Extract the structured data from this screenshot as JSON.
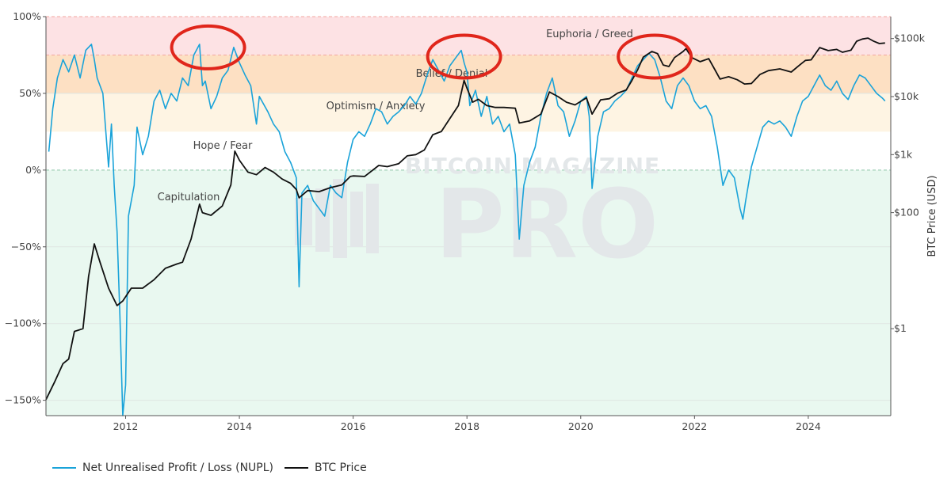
{
  "chart_data": {
    "type": "line",
    "xlim": [
      2010.6,
      2025.45
    ],
    "x_ticks": [
      "2012",
      "2014",
      "2016",
      "2018",
      "2020",
      "2022",
      "2024"
    ],
    "y_left": {
      "range": [
        -160,
        100
      ],
      "ticks": [
        {
          "v": 100,
          "label": "100%"
        },
        {
          "v": 50,
          "label": "50%"
        },
        {
          "v": 0,
          "label": "0%"
        },
        {
          "v": -50,
          "label": "−50%"
        },
        {
          "v": -100,
          "label": "−100%"
        },
        {
          "v": -150,
          "label": "−150%"
        }
      ]
    },
    "y_right": {
      "title": "BTC Price (USD)",
      "scale": "log",
      "ticks": [
        {
          "v": 100000,
          "label": "$100k"
        },
        {
          "v": 10000,
          "label": "$10k"
        },
        {
          "v": 1000,
          "label": "$1k"
        },
        {
          "v": 100,
          "label": "$100"
        },
        {
          "v": 1,
          "label": "$1"
        }
      ]
    },
    "zones": [
      {
        "name": "Euphoria / Greed",
        "from": 75,
        "to": 100,
        "color": "#fde2e4"
      },
      {
        "name": "Belief / Denial",
        "from": 50,
        "to": 75,
        "color": "#fde0c3"
      },
      {
        "name": "Optimism / Anxiety",
        "from": 25,
        "to": 50,
        "color": "#fef4e3"
      },
      {
        "name": "Hope / Fear",
        "from": 0,
        "to": 25,
        "color": "#ffffff"
      },
      {
        "name": "Capitulation",
        "from": -160,
        "to": 0,
        "color": "#e9f8f0"
      }
    ],
    "series": [
      {
        "name": "Net Unrealised Profit / Loss (NUPL)",
        "axis": "left",
        "color": "#1aa3d9",
        "points": [
          [
            2010.65,
            12
          ],
          [
            2010.72,
            40
          ],
          [
            2010.8,
            60
          ],
          [
            2010.9,
            72
          ],
          [
            2011.0,
            64
          ],
          [
            2011.1,
            75
          ],
          [
            2011.2,
            60
          ],
          [
            2011.3,
            78
          ],
          [
            2011.4,
            82
          ],
          [
            2011.45,
            72
          ],
          [
            2011.5,
            60
          ],
          [
            2011.6,
            50
          ],
          [
            2011.7,
            2
          ],
          [
            2011.75,
            30
          ],
          [
            2011.8,
            -10
          ],
          [
            2011.85,
            -40
          ],
          [
            2011.9,
            -95
          ],
          [
            2011.95,
            -160
          ],
          [
            2012.0,
            -140
          ],
          [
            2012.05,
            -30
          ],
          [
            2012.15,
            -10
          ],
          [
            2012.2,
            28
          ],
          [
            2012.3,
            10
          ],
          [
            2012.4,
            22
          ],
          [
            2012.5,
            45
          ],
          [
            2012.6,
            52
          ],
          [
            2012.7,
            40
          ],
          [
            2012.8,
            50
          ],
          [
            2012.9,
            45
          ],
          [
            2013.0,
            60
          ],
          [
            2013.1,
            55
          ],
          [
            2013.2,
            75
          ],
          [
            2013.3,
            82
          ],
          [
            2013.35,
            55
          ],
          [
            2013.4,
            58
          ],
          [
            2013.5,
            40
          ],
          [
            2013.6,
            48
          ],
          [
            2013.7,
            60
          ],
          [
            2013.8,
            65
          ],
          [
            2013.9,
            80
          ],
          [
            2014.0,
            70
          ],
          [
            2014.1,
            62
          ],
          [
            2014.2,
            55
          ],
          [
            2014.3,
            30
          ],
          [
            2014.35,
            48
          ],
          [
            2014.5,
            38
          ],
          [
            2014.6,
            30
          ],
          [
            2014.7,
            25
          ],
          [
            2014.8,
            12
          ],
          [
            2014.9,
            5
          ],
          [
            2015.0,
            -5
          ],
          [
            2015.05,
            -76
          ],
          [
            2015.1,
            -15
          ],
          [
            2015.2,
            -10
          ],
          [
            2015.3,
            -20
          ],
          [
            2015.4,
            -25
          ],
          [
            2015.5,
            -30
          ],
          [
            2015.6,
            -10
          ],
          [
            2015.7,
            -15
          ],
          [
            2015.8,
            -18
          ],
          [
            2015.9,
            5
          ],
          [
            2016.0,
            20
          ],
          [
            2016.1,
            25
          ],
          [
            2016.2,
            22
          ],
          [
            2016.3,
            30
          ],
          [
            2016.4,
            40
          ],
          [
            2016.5,
            38
          ],
          [
            2016.6,
            30
          ],
          [
            2016.7,
            35
          ],
          [
            2016.8,
            38
          ],
          [
            2016.9,
            42
          ],
          [
            2017.0,
            48
          ],
          [
            2017.1,
            43
          ],
          [
            2017.2,
            50
          ],
          [
            2017.3,
            62
          ],
          [
            2017.4,
            72
          ],
          [
            2017.5,
            65
          ],
          [
            2017.6,
            58
          ],
          [
            2017.7,
            68
          ],
          [
            2017.8,
            73
          ],
          [
            2017.9,
            78
          ],
          [
            2017.95,
            70
          ],
          [
            2018.0,
            64
          ],
          [
            2018.05,
            42
          ],
          [
            2018.15,
            52
          ],
          [
            2018.25,
            35
          ],
          [
            2018.35,
            48
          ],
          [
            2018.45,
            30
          ],
          [
            2018.55,
            35
          ],
          [
            2018.65,
            25
          ],
          [
            2018.75,
            30
          ],
          [
            2018.85,
            10
          ],
          [
            2018.92,
            -45
          ],
          [
            2019.0,
            -10
          ],
          [
            2019.1,
            5
          ],
          [
            2019.2,
            15
          ],
          [
            2019.3,
            35
          ],
          [
            2019.4,
            50
          ],
          [
            2019.5,
            60
          ],
          [
            2019.6,
            42
          ],
          [
            2019.7,
            38
          ],
          [
            2019.8,
            22
          ],
          [
            2019.9,
            32
          ],
          [
            2020.0,
            45
          ],
          [
            2020.1,
            48
          ],
          [
            2020.15,
            35
          ],
          [
            2020.2,
            -12
          ],
          [
            2020.3,
            22
          ],
          [
            2020.4,
            38
          ],
          [
            2020.5,
            40
          ],
          [
            2020.6,
            45
          ],
          [
            2020.7,
            48
          ],
          [
            2020.8,
            52
          ],
          [
            2020.9,
            60
          ],
          [
            2021.0,
            68
          ],
          [
            2021.1,
            72
          ],
          [
            2021.2,
            76
          ],
          [
            2021.3,
            72
          ],
          [
            2021.4,
            60
          ],
          [
            2021.5,
            45
          ],
          [
            2021.6,
            40
          ],
          [
            2021.7,
            55
          ],
          [
            2021.8,
            60
          ],
          [
            2021.9,
            55
          ],
          [
            2022.0,
            45
          ],
          [
            2022.1,
            40
          ],
          [
            2022.2,
            42
          ],
          [
            2022.3,
            35
          ],
          [
            2022.4,
            15
          ],
          [
            2022.5,
            -10
          ],
          [
            2022.6,
            0
          ],
          [
            2022.7,
            -5
          ],
          [
            2022.8,
            -25
          ],
          [
            2022.85,
            -32
          ],
          [
            2022.9,
            -20
          ],
          [
            2023.0,
            2
          ],
          [
            2023.1,
            15
          ],
          [
            2023.2,
            28
          ],
          [
            2023.3,
            32
          ],
          [
            2023.4,
            30
          ],
          [
            2023.5,
            32
          ],
          [
            2023.6,
            28
          ],
          [
            2023.7,
            22
          ],
          [
            2023.8,
            35
          ],
          [
            2023.9,
            45
          ],
          [
            2024.0,
            48
          ],
          [
            2024.1,
            55
          ],
          [
            2024.2,
            62
          ],
          [
            2024.3,
            55
          ],
          [
            2024.4,
            52
          ],
          [
            2024.5,
            58
          ],
          [
            2024.6,
            50
          ],
          [
            2024.7,
            46
          ],
          [
            2024.8,
            55
          ],
          [
            2024.9,
            62
          ],
          [
            2025.0,
            60
          ],
          [
            2025.1,
            55
          ],
          [
            2025.2,
            50
          ],
          [
            2025.3,
            47
          ],
          [
            2025.35,
            45
          ]
        ]
      },
      {
        "name": "BTC Price",
        "axis": "right",
        "color": "#111111",
        "points": [
          [
            2010.6,
            0.06
          ],
          [
            2010.75,
            0.12
          ],
          [
            2010.9,
            0.25
          ],
          [
            2011.0,
            0.3
          ],
          [
            2011.1,
            0.9
          ],
          [
            2011.25,
            1
          ],
          [
            2011.35,
            8
          ],
          [
            2011.45,
            29
          ],
          [
            2011.55,
            14
          ],
          [
            2011.7,
            5
          ],
          [
            2011.85,
            2.5
          ],
          [
            2011.95,
            3
          ],
          [
            2012.1,
            5
          ],
          [
            2012.3,
            5
          ],
          [
            2012.5,
            7
          ],
          [
            2012.7,
            11
          ],
          [
            2012.9,
            13
          ],
          [
            2013.0,
            14
          ],
          [
            2013.15,
            35
          ],
          [
            2013.3,
            140
          ],
          [
            2013.35,
            100
          ],
          [
            2013.5,
            90
          ],
          [
            2013.7,
            130
          ],
          [
            2013.85,
            300
          ],
          [
            2013.92,
            1150
          ],
          [
            2014.0,
            800
          ],
          [
            2014.15,
            500
          ],
          [
            2014.3,
            450
          ],
          [
            2014.45,
            600
          ],
          [
            2014.6,
            500
          ],
          [
            2014.75,
            380
          ],
          [
            2014.9,
            320
          ],
          [
            2015.0,
            250
          ],
          [
            2015.05,
            180
          ],
          [
            2015.2,
            240
          ],
          [
            2015.4,
            230
          ],
          [
            2015.6,
            270
          ],
          [
            2015.8,
            300
          ],
          [
            2015.95,
            420
          ],
          [
            2016.0,
            430
          ],
          [
            2016.2,
            420
          ],
          [
            2016.45,
            650
          ],
          [
            2016.6,
            620
          ],
          [
            2016.8,
            700
          ],
          [
            2016.95,
            950
          ],
          [
            2017.1,
            1000
          ],
          [
            2017.25,
            1200
          ],
          [
            2017.4,
            2200
          ],
          [
            2017.55,
            2500
          ],
          [
            2017.7,
            4200
          ],
          [
            2017.85,
            7000
          ],
          [
            2017.95,
            19000
          ],
          [
            2018.0,
            14000
          ],
          [
            2018.1,
            8000
          ],
          [
            2018.2,
            9000
          ],
          [
            2018.35,
            7000
          ],
          [
            2018.5,
            6500
          ],
          [
            2018.65,
            6500
          ],
          [
            2018.85,
            6300
          ],
          [
            2018.92,
            3500
          ],
          [
            2019.1,
            3800
          ],
          [
            2019.3,
            5000
          ],
          [
            2019.45,
            12000
          ],
          [
            2019.6,
            10000
          ],
          [
            2019.75,
            8000
          ],
          [
            2019.9,
            7200
          ],
          [
            2020.1,
            9500
          ],
          [
            2020.2,
            5000
          ],
          [
            2020.35,
            8800
          ],
          [
            2020.5,
            9200
          ],
          [
            2020.65,
            11500
          ],
          [
            2020.8,
            13000
          ],
          [
            2020.9,
            19000
          ],
          [
            2021.0,
            29000
          ],
          [
            2021.1,
            48000
          ],
          [
            2021.25,
            60000
          ],
          [
            2021.35,
            55000
          ],
          [
            2021.45,
            35000
          ],
          [
            2021.55,
            33000
          ],
          [
            2021.65,
            47000
          ],
          [
            2021.8,
            60000
          ],
          [
            2021.85,
            67000
          ],
          [
            2021.95,
            47000
          ],
          [
            2022.1,
            40000
          ],
          [
            2022.25,
            45000
          ],
          [
            2022.35,
            30000
          ],
          [
            2022.45,
            20000
          ],
          [
            2022.6,
            22000
          ],
          [
            2022.75,
            19500
          ],
          [
            2022.88,
            16500
          ],
          [
            2023.0,
            16800
          ],
          [
            2023.15,
            24000
          ],
          [
            2023.3,
            28000
          ],
          [
            2023.5,
            30000
          ],
          [
            2023.7,
            26500
          ],
          [
            2023.85,
            35000
          ],
          [
            2023.95,
            42000
          ],
          [
            2024.05,
            43000
          ],
          [
            2024.2,
            70000
          ],
          [
            2024.35,
            62000
          ],
          [
            2024.5,
            65000
          ],
          [
            2024.6,
            58000
          ],
          [
            2024.75,
            63000
          ],
          [
            2024.85,
            90000
          ],
          [
            2024.95,
            98000
          ],
          [
            2025.05,
            102000
          ],
          [
            2025.15,
            90000
          ],
          [
            2025.25,
            82000
          ],
          [
            2025.35,
            84000
          ]
        ]
      }
    ],
    "annotations": [
      {
        "type": "circle",
        "x": 2013.45,
        "y": 82,
        "color": "#e0261b"
      },
      {
        "type": "circle",
        "x": 2017.95,
        "y": 76,
        "color": "#e0261b"
      },
      {
        "type": "circle",
        "x": 2021.3,
        "y": 76,
        "color": "#e0261b"
      }
    ]
  },
  "watermark": {
    "line1": "BITCOIN MAGAZINE",
    "line2": "PRO"
  },
  "legend": [
    {
      "label": "Net Unrealised Profit / Loss (NUPL)",
      "color": "#1aa3d9"
    },
    {
      "label": "BTC Price",
      "color": "#111111"
    }
  ]
}
